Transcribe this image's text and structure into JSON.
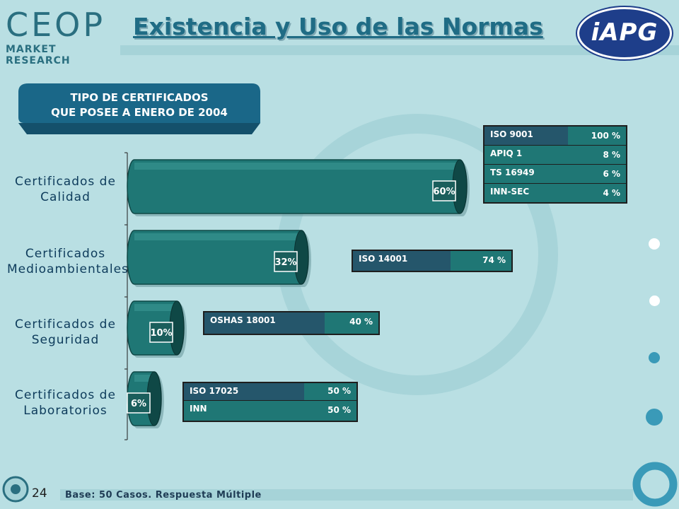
{
  "slide": {
    "logo_main": "CEOP",
    "logo_sub": "MARKET RESEARCH",
    "title": "Existencia y Uso de las Normas",
    "partner_logo": "iAPG",
    "header_line1": "TIPO DE CERTIFICADOS",
    "header_line2": "QUE POSEE A ENERO DE 2004",
    "page_number": "24",
    "base_note": "Base: 50 Casos. Respuesta Múltiple"
  },
  "categories": [
    {
      "line1": "Certificados de",
      "line2": "Calidad"
    },
    {
      "line1": "Certificados",
      "line2": "Medioambientales"
    },
    {
      "line1": "Certificados de",
      "line2": "Seguridad"
    },
    {
      "line1": "Certificados de",
      "line2": "Laboratorios"
    }
  ],
  "tables": [
    {
      "rows": [
        {
          "name": "ISO 9001",
          "value": "100 %"
        },
        {
          "name": "APIQ 1",
          "value": "8 %"
        },
        {
          "name": "TS 16949",
          "value": "6 %"
        },
        {
          "name": "INN-SEC",
          "value": "4 %"
        }
      ]
    },
    {
      "rows": [
        {
          "name": "ISO 14001",
          "value": "74 %"
        }
      ]
    },
    {
      "rows": [
        {
          "name": "OSHAS 18001",
          "value": "40 %"
        }
      ]
    },
    {
      "rows": [
        {
          "name": "ISO 17025",
          "value": "50 %"
        },
        {
          "name": "INN",
          "value": "50 %"
        }
      ]
    }
  ],
  "chart_data": {
    "type": "bar",
    "orientation": "horizontal",
    "categories": [
      "Certificados de Calidad",
      "Certificados Medioambientales",
      "Certificados de Seguridad",
      "Certificados de Laboratorios"
    ],
    "values": [
      60,
      32,
      10,
      6
    ],
    "value_labels": [
      "60%",
      "32%",
      "10%",
      "6%"
    ],
    "xlim": [
      0,
      100
    ],
    "unit": "%",
    "colors": {
      "bar": "#1f7775",
      "bar_dark": "#0f4846",
      "bar_light": "#3c9a96"
    }
  },
  "colors": {
    "background": "#b9dfe3",
    "header_pill": "#1a6788",
    "title": "#1f6c85",
    "table_green": "#1f7775",
    "table_dark": "#25566b"
  }
}
